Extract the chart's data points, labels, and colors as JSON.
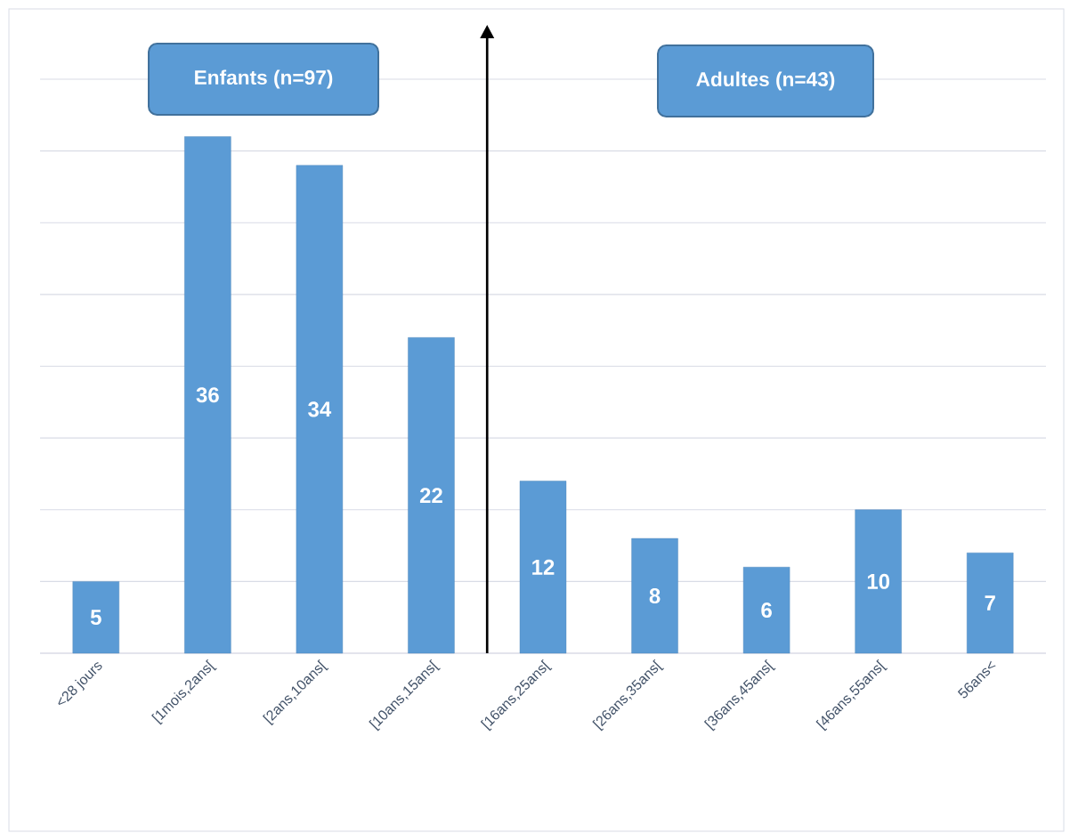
{
  "chart_data": {
    "type": "bar",
    "categories": [
      "<28 jours",
      "[1mois,2ans[",
      "[2ans,10ans[",
      "[10ans,15ans[",
      "[16ans,25ans[",
      "[26ans,35ans[",
      "[36ans,45ans[",
      "[46ans,55ans[",
      "56ans<"
    ],
    "values": [
      5,
      36,
      34,
      22,
      12,
      8,
      6,
      10,
      7
    ],
    "color": "#5b9bd5",
    "data_labels": true,
    "ylim": [
      0,
      40
    ],
    "yticks": [
      {
        "value": 0,
        "label": null
      },
      {
        "value": 5,
        "label": null
      },
      {
        "value": 10,
        "label": null
      },
      {
        "value": 15,
        "label": null
      },
      {
        "value": 20,
        "label": null
      },
      {
        "value": 25,
        "label": null
      },
      {
        "value": 30,
        "label": null
      },
      {
        "value": 35,
        "label": null
      },
      {
        "value": 40,
        "label": null
      }
    ],
    "grid": "y",
    "tick_labels": "x",
    "annotations": [
      "Enfants (n=97)",
      "Adultes (n=43)"
    ]
  }
}
